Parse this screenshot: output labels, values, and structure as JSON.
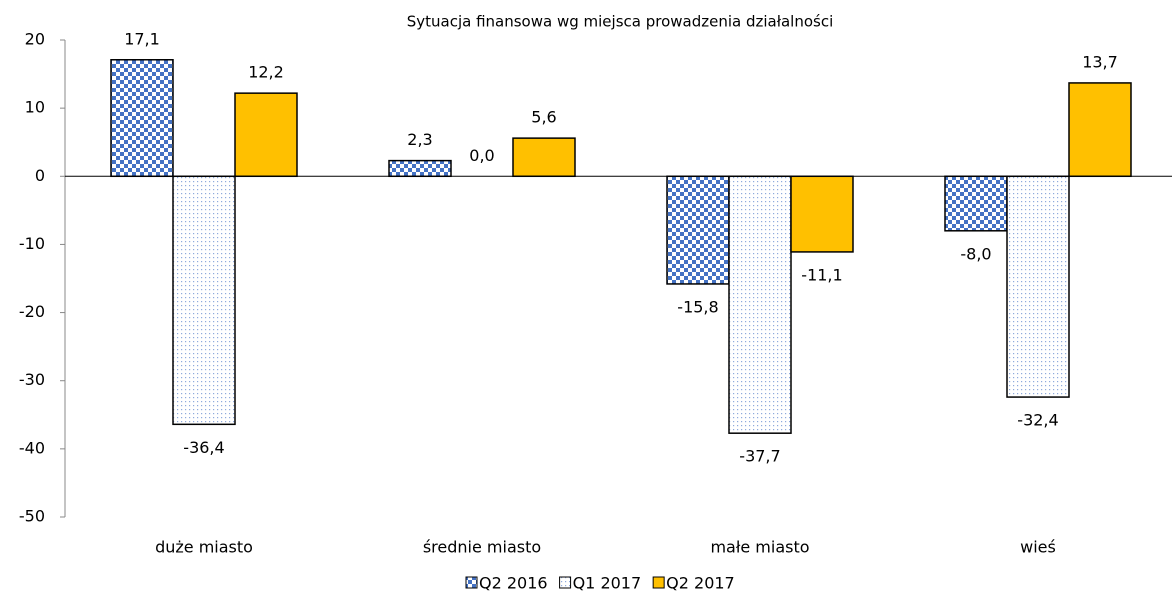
{
  "chart_data": {
    "type": "bar",
    "title": "Sytuacja finansowa wg miejsca prowadzenia działalności",
    "categories": [
      "duże miasto",
      "średnie miasto",
      "małe miasto",
      "wieś"
    ],
    "series": [
      {
        "name": "Q2 2016",
        "color": "#4472c4",
        "pattern": "checker",
        "values": [
          17.1,
          2.3,
          -15.8,
          -8.0
        ],
        "value_labels": [
          "17,1",
          "2,3",
          "-15,8",
          "-8,0"
        ]
      },
      {
        "name": "Q1 2017",
        "color": "#8faadc",
        "pattern": "dots",
        "values": [
          -36.4,
          0.0,
          -37.7,
          -32.4
        ],
        "value_labels": [
          "-36,4",
          "0,0",
          "-37,7",
          "-32,4"
        ]
      },
      {
        "name": "Q2 2017",
        "color": "#ffc000",
        "pattern": "solid",
        "values": [
          12.2,
          5.6,
          -11.1,
          13.7
        ],
        "value_labels": [
          "12,2",
          "5,6",
          "-11,1",
          "13,7"
        ]
      }
    ],
    "ylim": [
      -50,
      20
    ],
    "yticks": [
      -50,
      -40,
      -30,
      -20,
      -10,
      0,
      10,
      20
    ],
    "grid": false,
    "legend": "bottom"
  }
}
